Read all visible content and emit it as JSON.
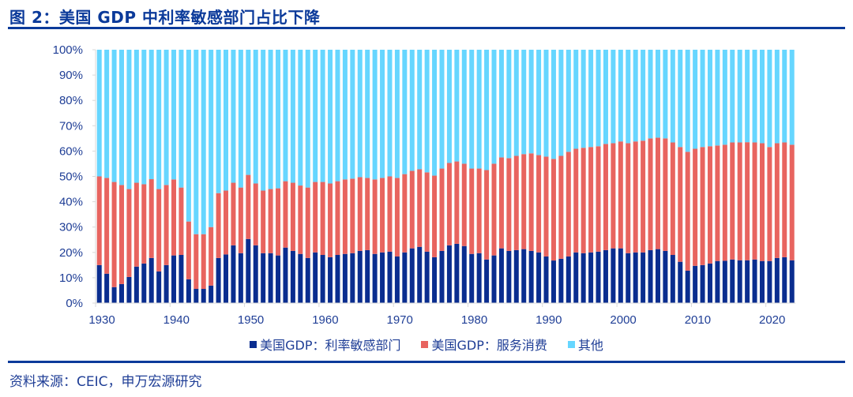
{
  "header": {
    "title": "图 2：美国 GDP 中利率敏感部门占比下降"
  },
  "footer": {
    "source": "资料来源：CEIC，申万宏源研究"
  },
  "colors": {
    "title": "#0B3A9A",
    "rate_sensitive": "#0A2D8F",
    "services": "#E8645F",
    "other": "#66D6FF",
    "axis_text": "#1F3E96"
  },
  "legend": [
    {
      "label": "美国GDP：利率敏感部门",
      "color": "#0A2D8F"
    },
    {
      "label": "美国GDP：服务消费",
      "color": "#E8645F"
    },
    {
      "label": "其他",
      "color": "#66D6FF"
    }
  ],
  "chart_data": {
    "type": "bar",
    "stacked": true,
    "title": "美国 GDP 中利率敏感部门占比下降",
    "xlabel": "",
    "ylabel": "",
    "ylim": [
      0,
      100
    ],
    "yticks": [
      "0%",
      "10%",
      "20%",
      "30%",
      "40%",
      "50%",
      "60%",
      "70%",
      "80%",
      "90%",
      "100%"
    ],
    "xticks": [
      "1930",
      "1940",
      "1950",
      "1960",
      "1970",
      "1980",
      "1990",
      "2000",
      "2010",
      "2020"
    ],
    "legend_position": "bottom",
    "grid": false,
    "categories": [
      1930,
      1931,
      1932,
      1933,
      1934,
      1935,
      1936,
      1937,
      1938,
      1939,
      1940,
      1941,
      1942,
      1943,
      1944,
      1945,
      1946,
      1947,
      1948,
      1949,
      1950,
      1951,
      1952,
      1953,
      1954,
      1955,
      1956,
      1957,
      1958,
      1959,
      1960,
      1961,
      1962,
      1963,
      1964,
      1965,
      1966,
      1967,
      1968,
      1969,
      1970,
      1971,
      1972,
      1973,
      1974,
      1975,
      1976,
      1977,
      1978,
      1979,
      1980,
      1981,
      1982,
      1983,
      1984,
      1985,
      1986,
      1987,
      1988,
      1989,
      1990,
      1991,
      1992,
      1993,
      1994,
      1995,
      1996,
      1997,
      1998,
      1999,
      2000,
      2001,
      2002,
      2003,
      2004,
      2005,
      2006,
      2007,
      2008,
      2009,
      2010,
      2011,
      2012,
      2013,
      2014,
      2015,
      2016,
      2017,
      2018,
      2019,
      2020,
      2021,
      2022,
      2023
    ],
    "series": [
      {
        "name": "美国GDP：利率敏感部门",
        "values": [
          15.0,
          11.6,
          6.3,
          7.5,
          10.3,
          14.4,
          15.6,
          17.8,
          12.5,
          15.0,
          18.8,
          19.0,
          9.4,
          5.6,
          5.6,
          6.9,
          17.8,
          19.2,
          22.8,
          19.7,
          25.3,
          22.8,
          19.7,
          19.7,
          18.8,
          21.9,
          20.6,
          19.4,
          17.8,
          20.0,
          19.0,
          18.1,
          19.0,
          19.4,
          19.7,
          20.6,
          20.9,
          19.4,
          20.0,
          20.3,
          18.4,
          20.0,
          21.6,
          22.2,
          20.3,
          18.1,
          20.6,
          22.8,
          23.4,
          22.5,
          19.4,
          19.7,
          17.2,
          18.8,
          21.6,
          20.6,
          20.9,
          21.3,
          20.6,
          20.0,
          18.4,
          16.8,
          17.5,
          18.4,
          20.0,
          19.7,
          20.0,
          20.3,
          20.9,
          21.6,
          21.6,
          19.7,
          20.0,
          20.0,
          20.9,
          21.3,
          20.6,
          19.0,
          16.3,
          12.8,
          14.7,
          15.0,
          15.6,
          16.6,
          16.7,
          17.2,
          16.9,
          16.9,
          17.2,
          16.6,
          16.6,
          17.8,
          18.1,
          16.9
        ]
      },
      {
        "name": "美国GDP：服务消费",
        "values": [
          35.0,
          37.8,
          41.5,
          39.1,
          34.7,
          33.1,
          31.3,
          31.1,
          32.5,
          31.6,
          30.0,
          26.6,
          22.8,
          21.6,
          21.6,
          23.1,
          25.6,
          25.2,
          24.7,
          25.9,
          25.3,
          24.4,
          24.7,
          25.3,
          26.5,
          26.2,
          26.9,
          27.0,
          27.8,
          27.8,
          28.8,
          29.1,
          29.1,
          29.4,
          29.4,
          29.1,
          28.5,
          29.4,
          29.4,
          29.7,
          31.0,
          30.9,
          30.6,
          30.6,
          31.3,
          32.2,
          32.5,
          32.5,
          32.5,
          32.5,
          33.7,
          33.4,
          35.3,
          36.2,
          35.9,
          36.6,
          37.2,
          37.5,
          38.5,
          38.4,
          39.4,
          40.1,
          40.6,
          41.3,
          40.9,
          41.6,
          41.6,
          41.6,
          41.9,
          41.5,
          42.2,
          43.4,
          43.8,
          44.1,
          44.1,
          44.0,
          44.4,
          44.4,
          45.3,
          46.9,
          46.2,
          46.6,
          46.3,
          45.6,
          45.8,
          46.2,
          46.5,
          46.6,
          46.2,
          46.5,
          45.0,
          45.3,
          45.3,
          45.6
        ]
      },
      {
        "name": "其他",
        "values": [
          50.0,
          50.6,
          52.2,
          53.4,
          55.0,
          52.5,
          53.1,
          51.1,
          55.0,
          53.4,
          51.2,
          54.4,
          67.8,
          72.8,
          72.8,
          70.0,
          56.6,
          55.6,
          52.5,
          54.4,
          49.4,
          52.8,
          55.6,
          55.0,
          54.7,
          51.9,
          52.5,
          53.6,
          54.4,
          52.2,
          52.2,
          52.8,
          51.9,
          51.2,
          50.9,
          50.3,
          50.6,
          51.2,
          50.6,
          50.0,
          50.6,
          49.1,
          47.8,
          47.2,
          48.4,
          49.7,
          46.9,
          44.7,
          44.1,
          45.0,
          46.9,
          46.9,
          47.5,
          45.0,
          42.5,
          42.8,
          41.9,
          41.2,
          40.9,
          41.6,
          42.2,
          43.1,
          41.9,
          40.3,
          39.1,
          38.7,
          38.4,
          38.1,
          37.2,
          36.9,
          36.2,
          36.9,
          36.2,
          35.9,
          35.0,
          34.7,
          35.0,
          36.6,
          38.4,
          40.3,
          39.1,
          38.4,
          38.1,
          37.8,
          37.5,
          36.6,
          36.6,
          36.5,
          36.6,
          36.9,
          38.4,
          36.9,
          36.6,
          37.5
        ]
      }
    ]
  }
}
